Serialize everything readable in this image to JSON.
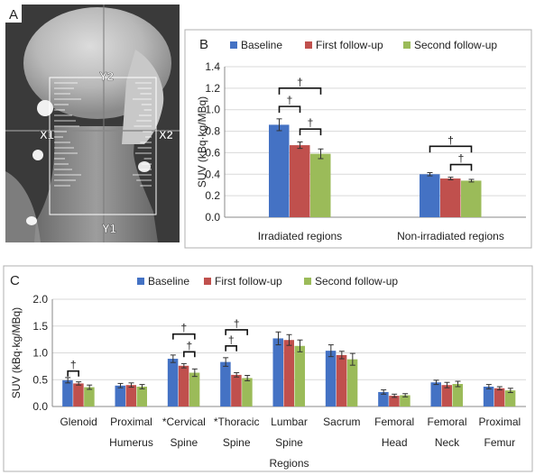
{
  "panel_labels": {
    "a": "A",
    "b": "B",
    "c": "C"
  },
  "xray": {
    "labels": {
      "y2": "Y2",
      "y1": "Y1",
      "x1": "X1",
      "x2": "X2"
    }
  },
  "colors": {
    "baseline": "#4472C4",
    "first": "#C0504D",
    "second": "#9BBB59"
  },
  "chart_data": [
    {
      "type": "bar",
      "panel": "B",
      "categories": [
        "Irradiated regions",
        "Non-irradiated regions"
      ],
      "series": [
        {
          "name": "Baseline",
          "values": [
            0.86,
            0.4
          ],
          "errors": [
            0.055,
            0.015
          ]
        },
        {
          "name": "First follow-up",
          "values": [
            0.67,
            0.36
          ],
          "errors": [
            0.03,
            0.012
          ]
        },
        {
          "name": "Second follow-up",
          "values": [
            0.59,
            0.34
          ],
          "errors": [
            0.045,
            0.012
          ]
        }
      ],
      "ylabel": "SUV (kBq·kg/MBq)",
      "ylim": [
        0,
        1.4
      ],
      "yticks": [
        "0.0",
        "0.2",
        "0.4",
        "0.6",
        "0.8",
        "1.0",
        "1.2",
        "1.4"
      ],
      "legend": "top",
      "significance_mark": "†"
    },
    {
      "type": "bar",
      "panel": "C",
      "categories": [
        [
          "Glenoid",
          ""
        ],
        [
          "Proximal",
          "Humerus"
        ],
        [
          "*Cervical",
          "Spine"
        ],
        [
          "*Thoracic",
          "Spine"
        ],
        [
          "Lumbar",
          "Spine"
        ],
        [
          "Sacrum",
          ""
        ],
        [
          "Femoral",
          "Head"
        ],
        [
          "Femoral",
          "Neck"
        ],
        [
          "Proximal",
          "Femur"
        ]
      ],
      "series": [
        {
          "name": "Baseline",
          "values": [
            0.49,
            0.39,
            0.89,
            0.83,
            1.27,
            1.04,
            0.27,
            0.45,
            0.37
          ],
          "errors": [
            0.05,
            0.04,
            0.07,
            0.08,
            0.12,
            0.11,
            0.04,
            0.04,
            0.04
          ]
        },
        {
          "name": "First follow-up",
          "values": [
            0.43,
            0.4,
            0.76,
            0.59,
            1.24,
            0.96,
            0.2,
            0.4,
            0.34
          ],
          "errors": [
            0.03,
            0.04,
            0.04,
            0.04,
            0.1,
            0.07,
            0.03,
            0.05,
            0.03
          ]
        },
        {
          "name": "Second follow-up",
          "values": [
            0.36,
            0.37,
            0.63,
            0.53,
            1.13,
            0.88,
            0.21,
            0.42,
            0.3
          ],
          "errors": [
            0.04,
            0.04,
            0.07,
            0.05,
            0.11,
            0.11,
            0.03,
            0.05,
            0.04
          ]
        }
      ],
      "xlabel": "Regions",
      "ylabel": "SUV (kBq·kg/MBq)",
      "ylim": [
        0,
        2.0
      ],
      "yticks": [
        "0.0",
        "0.5",
        "1.0",
        "1.5",
        "2.0"
      ],
      "legend": "top",
      "significance_mark": "†"
    }
  ]
}
